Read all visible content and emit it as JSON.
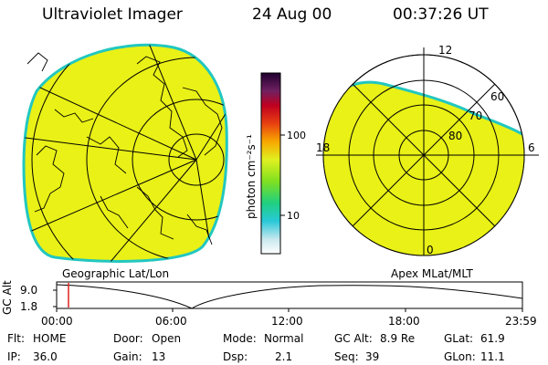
{
  "header": {
    "title": "Ultraviolet Imager",
    "date": "24 Aug 00",
    "time": "00:37:26 UT"
  },
  "left_panel": {
    "caption": "Geographic Lat/Lon",
    "fill_color": "#e9f116",
    "edge_color": "#22c7c0"
  },
  "colorbar": {
    "unit_label": "photon cm⁻²s⁻¹",
    "tick_labels": [
      "100",
      "10"
    ]
  },
  "right_panel": {
    "caption": "Apex MLat/MLT",
    "mlt_labels": [
      "12",
      "18",
      "6",
      "0"
    ],
    "mlat_labels": [
      "60",
      "70",
      "80"
    ]
  },
  "timeline": {
    "ylabel": "GC Alt",
    "y_ticks": [
      "9.0",
      "1.8"
    ],
    "x_ticks": [
      "00:00",
      "06:00",
      "12:00",
      "18:00",
      "23:59"
    ],
    "marker_color": "#e02020"
  },
  "status": {
    "row1": [
      {
        "key": "Flt:",
        "value": "HOME"
      },
      {
        "key": "Door:",
        "value": "Open"
      },
      {
        "key": "Mode:",
        "value": "Normal"
      },
      {
        "key": "GC Alt:",
        "value": "8.9 Re"
      },
      {
        "key": "GLat:",
        "value": "61.9"
      }
    ],
    "row2": [
      {
        "key": "IP:",
        "value": "36.0"
      },
      {
        "key": "Gain:",
        "value": "13"
      },
      {
        "key": "Dsp:",
        "value": "2.1"
      },
      {
        "key": "Seq:",
        "value": "39"
      },
      {
        "key": "GLon:",
        "value": "11.1"
      }
    ]
  }
}
